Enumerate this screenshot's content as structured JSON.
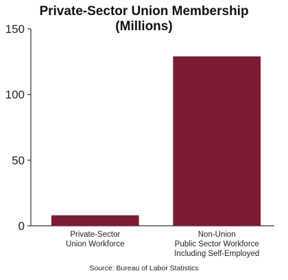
{
  "chart_data": {
    "type": "bar",
    "title_lines": [
      "Private-Sector Union Membership",
      "(Millions)"
    ],
    "categories": [
      [
        "Private-Sector",
        "Union Workforce"
      ],
      [
        "Non-Union",
        "Public Sector Workforce",
        "Including Self-Employed"
      ]
    ],
    "values": [
      8,
      129
    ],
    "ylim": [
      0,
      150
    ],
    "yticks": [
      "0",
      "50",
      "100",
      "150"
    ],
    "grid": false,
    "bar_color": "#7b1c32",
    "source": "Source: Bureau of Labor Statistics"
  }
}
